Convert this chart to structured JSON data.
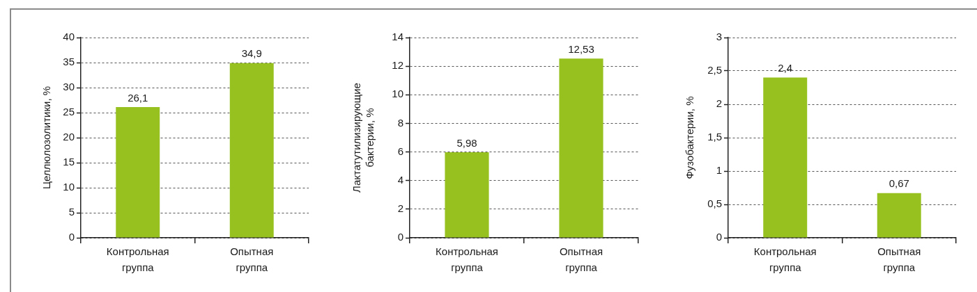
{
  "chart_data": [
    {
      "type": "bar",
      "ylabel": "Целлюлозолитики, %",
      "categories": [
        "Контрольная группа",
        "Опытная группа"
      ],
      "values": [
        26.1,
        34.9
      ],
      "value_labels": [
        "26,1",
        "34,9"
      ],
      "color": "#96c11f",
      "ylim": [
        0,
        40
      ],
      "yticks": [
        0,
        5,
        10,
        15,
        20,
        25,
        30,
        35,
        40
      ],
      "grid": "y"
    },
    {
      "type": "bar",
      "ylabel": "Лактатутилизирующие бактерии, %",
      "categories": [
        "Контрольная группа",
        "Опытная группа"
      ],
      "values": [
        5.98,
        12.53
      ],
      "value_labels": [
        "5,98",
        "12,53"
      ],
      "color": "#96c11f",
      "ylim": [
        0,
        14
      ],
      "yticks": [
        0,
        2,
        4,
        6,
        8,
        10,
        12,
        14
      ],
      "grid": "y"
    },
    {
      "type": "bar",
      "ylabel": "Фузобактерии, %",
      "categories": [
        "Контрольная группа",
        "Опытная группа"
      ],
      "values": [
        2.4,
        0.67
      ],
      "value_labels": [
        "2,4",
        "0,67"
      ],
      "color": "#96c11f",
      "ylim": [
        0,
        3
      ],
      "yticks": [
        0,
        {
          "value": 0.5,
          "label": "0,5"
        },
        1,
        {
          "value": 1.5,
          "label": "1,5"
        },
        2,
        {
          "value": 2.5,
          "label": "2,5"
        },
        3
      ],
      "grid": "y"
    }
  ]
}
